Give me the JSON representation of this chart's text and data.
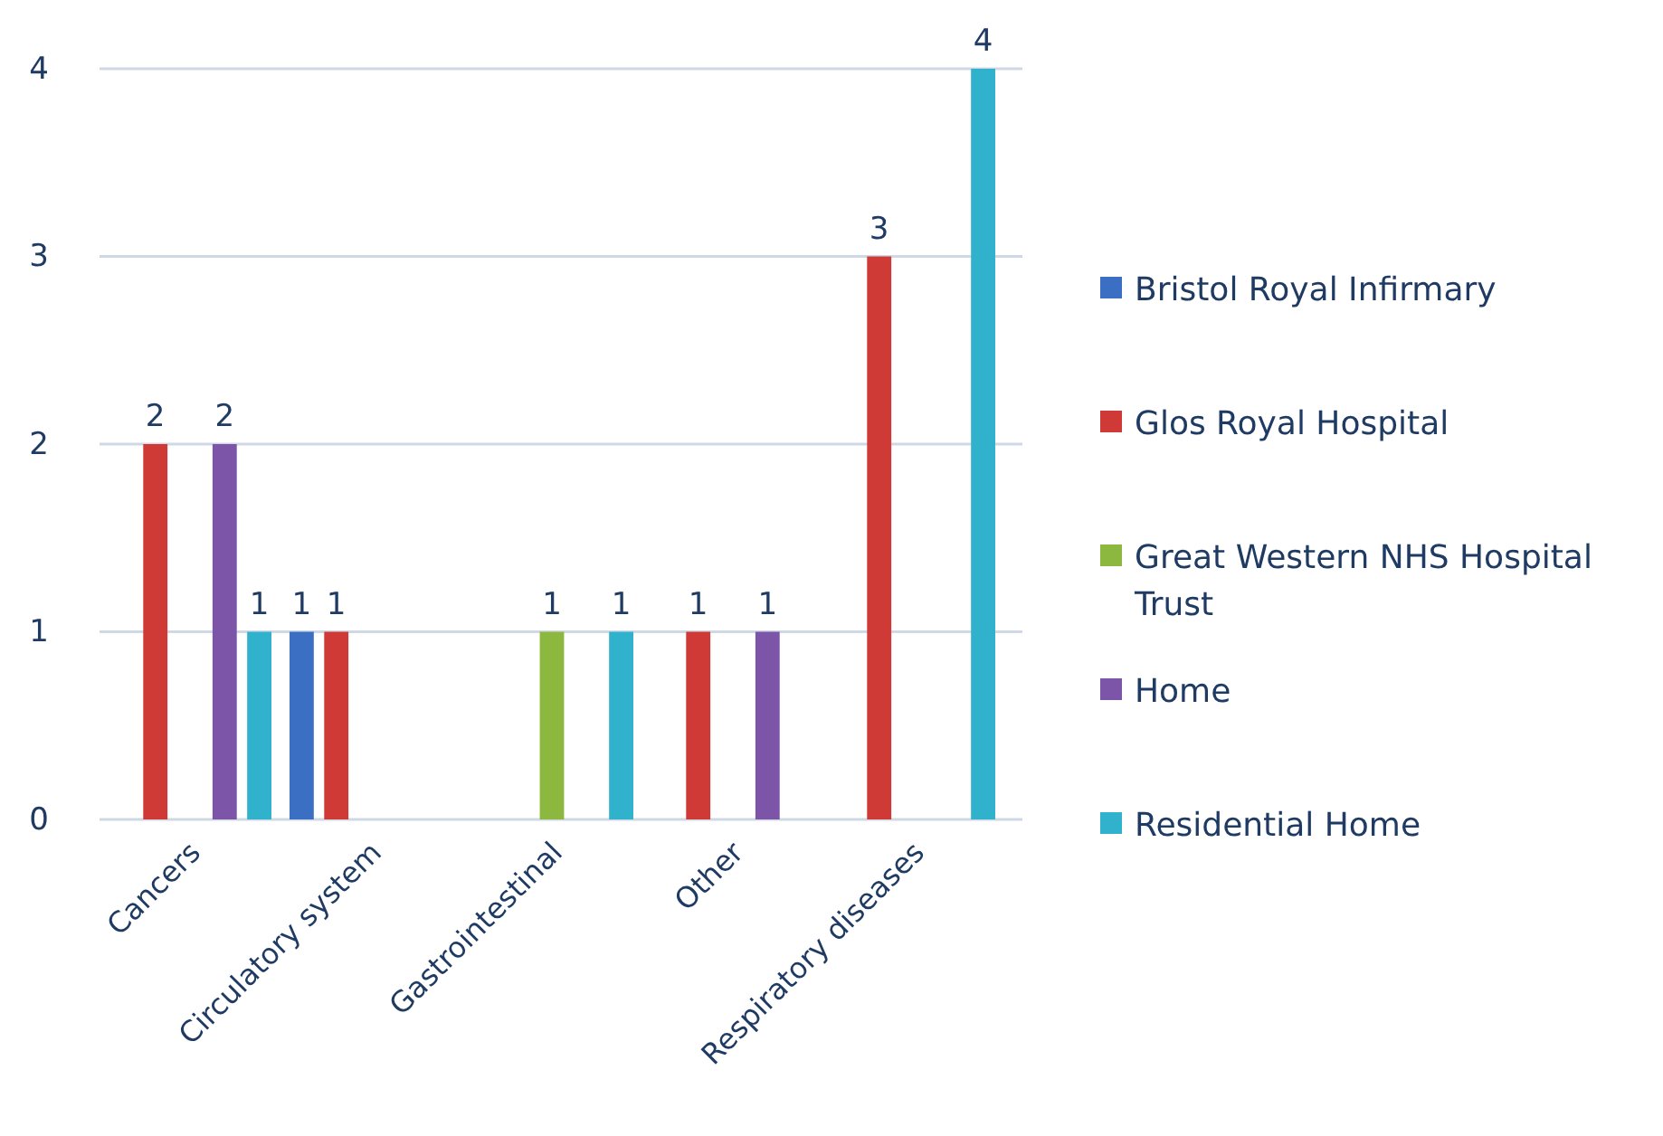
{
  "chart_data": {
    "type": "bar",
    "categories": [
      "Cancers",
      "Circulatory system",
      "Gastrointestinal",
      "Other",
      "Respiratory diseases"
    ],
    "series": [
      {
        "name": "Bristol Royal Infirmary",
        "color": "#3a6fc4",
        "values": [
          null,
          1,
          null,
          null,
          null
        ]
      },
      {
        "name": "Glos Royal Hospital",
        "color": "#cf3a36",
        "values": [
          2,
          1,
          null,
          1,
          3
        ]
      },
      {
        "name": "Great Western NHS Hospital Trust",
        "color": "#8db83f",
        "values": [
          null,
          null,
          1,
          null,
          null
        ]
      },
      {
        "name": "Home",
        "color": "#7d55a8",
        "values": [
          2,
          null,
          null,
          1,
          null
        ]
      },
      {
        "name": "Residential Home",
        "color": "#30b2cc",
        "values": [
          1,
          null,
          1,
          null,
          4
        ]
      }
    ],
    "ylim": [
      0,
      4
    ],
    "yticks": [
      0,
      1,
      2,
      3,
      4
    ],
    "grid": "y",
    "legend": "right",
    "data_labels": true
  }
}
